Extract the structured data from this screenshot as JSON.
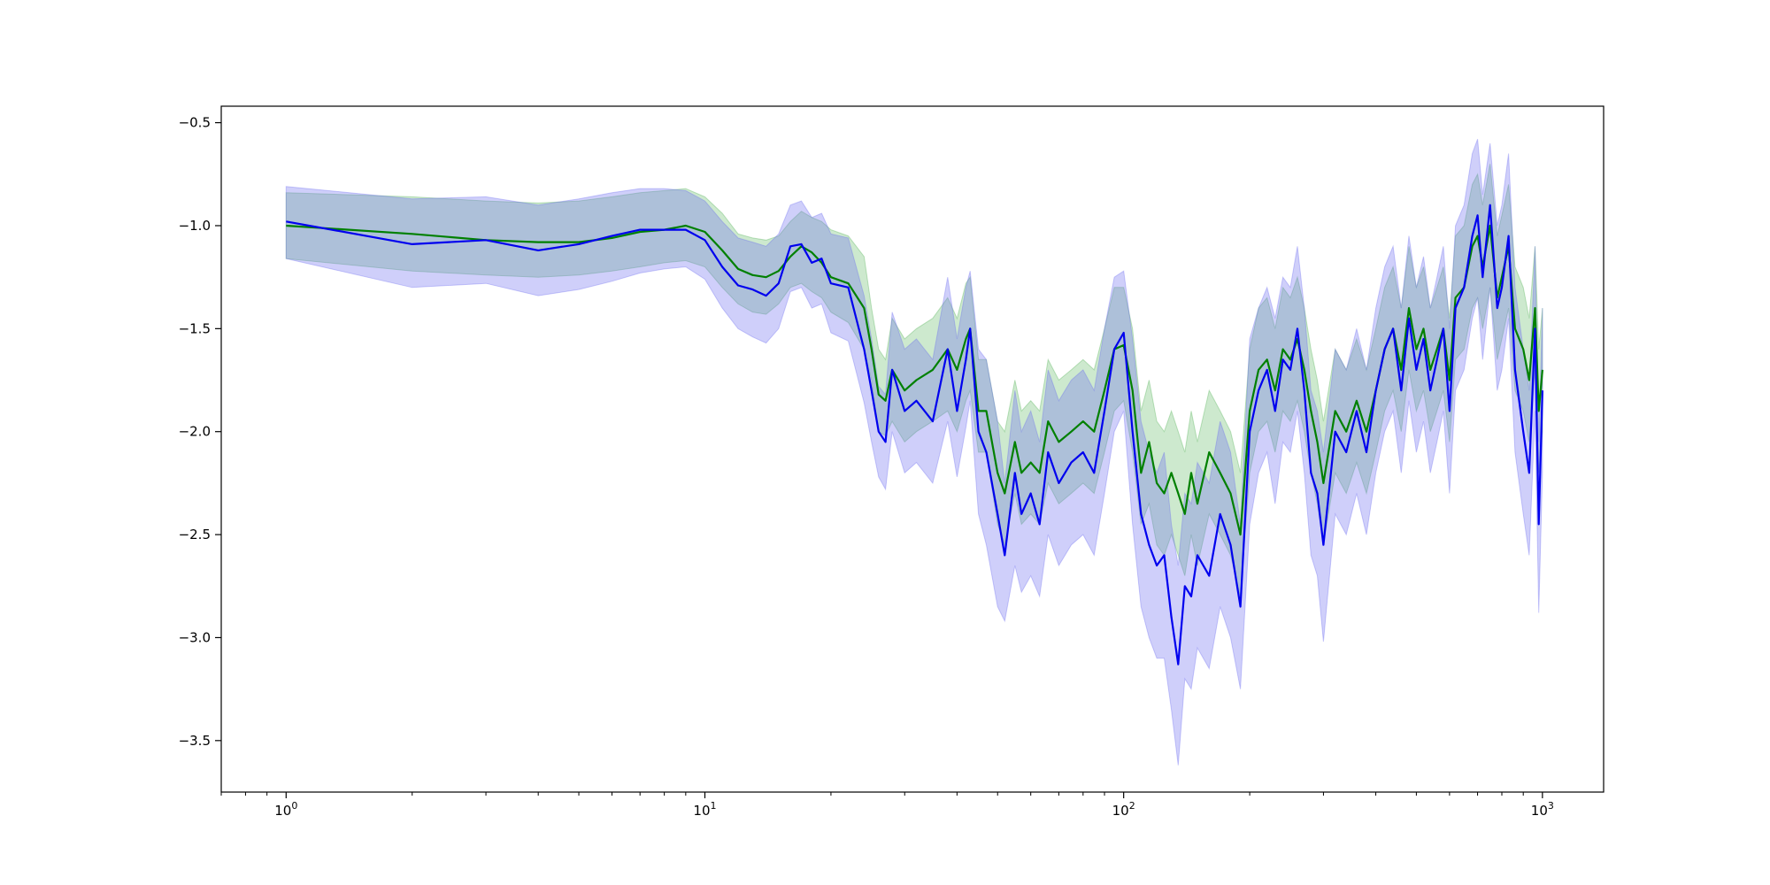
{
  "chart_data": {
    "type": "line",
    "title": "",
    "xlabel": "",
    "ylabel": "",
    "xscale": "log",
    "xlim": [
      0.7,
      1400
    ],
    "ylim": [
      -3.75,
      -0.42
    ],
    "grid": false,
    "legend": "none",
    "xticks": [
      {
        "value": 1,
        "base": "10",
        "exp": "0"
      },
      {
        "value": 10,
        "base": "10",
        "exp": "1"
      },
      {
        "value": 100,
        "base": "10",
        "exp": "2"
      },
      {
        "value": 1000,
        "base": "10",
        "exp": "3"
      }
    ],
    "yticks": [
      {
        "value": -0.5,
        "label": "−0.5"
      },
      {
        "value": -1.0,
        "label": "−1.0"
      },
      {
        "value": -1.5,
        "label": "−1.5"
      },
      {
        "value": -2.0,
        "label": "−2.0"
      },
      {
        "value": -2.5,
        "label": "−2.5"
      },
      {
        "value": -3.0,
        "label": "−3.0"
      },
      {
        "value": -3.5,
        "label": "−3.5"
      }
    ],
    "series": [
      {
        "color": "#008000",
        "band_color": "#4caf50",
        "band_opacity": 0.28,
        "x": [
          1,
          2,
          3,
          4,
          5,
          6,
          7,
          8,
          9,
          10,
          11,
          12,
          13,
          14,
          15,
          16,
          17,
          18,
          19,
          20,
          22,
          24,
          25,
          26,
          27,
          28,
          30,
          32,
          35,
          38,
          40,
          42,
          43,
          45,
          47,
          50,
          52,
          55,
          57,
          60,
          63,
          66,
          70,
          75,
          80,
          85,
          90,
          95,
          100,
          105,
          110,
          115,
          120,
          125,
          130,
          135,
          140,
          145,
          150,
          160,
          170,
          180,
          190,
          200,
          210,
          220,
          230,
          240,
          250,
          260,
          270,
          280,
          290,
          300,
          320,
          340,
          360,
          380,
          400,
          420,
          440,
          460,
          480,
          500,
          520,
          540,
          560,
          580,
          600,
          620,
          650,
          680,
          700,
          720,
          750,
          780,
          800,
          830,
          860,
          900,
          930,
          960,
          980,
          1000
        ],
        "y": [
          -1.0,
          -1.04,
          -1.07,
          -1.08,
          -1.08,
          -1.06,
          -1.03,
          -1.02,
          -1.0,
          -1.03,
          -1.12,
          -1.21,
          -1.24,
          -1.25,
          -1.22,
          -1.15,
          -1.1,
          -1.13,
          -1.18,
          -1.25,
          -1.28,
          -1.4,
          -1.6,
          -1.82,
          -1.85,
          -1.7,
          -1.8,
          -1.75,
          -1.7,
          -1.6,
          -1.7,
          -1.55,
          -1.5,
          -1.9,
          -1.9,
          -2.2,
          -2.3,
          -2.05,
          -2.2,
          -2.15,
          -2.2,
          -1.95,
          -2.05,
          -2.0,
          -1.95,
          -2.0,
          -1.8,
          -1.6,
          -1.58,
          -1.8,
          -2.2,
          -2.05,
          -2.25,
          -2.3,
          -2.2,
          -2.3,
          -2.4,
          -2.2,
          -2.35,
          -2.1,
          -2.2,
          -2.3,
          -2.5,
          -1.9,
          -1.7,
          -1.65,
          -1.8,
          -1.6,
          -1.65,
          -1.55,
          -1.7,
          -1.9,
          -2.05,
          -2.25,
          -1.9,
          -2.0,
          -1.85,
          -2.0,
          -1.8,
          -1.6,
          -1.5,
          -1.7,
          -1.4,
          -1.6,
          -1.5,
          -1.7,
          -1.6,
          -1.5,
          -1.75,
          -1.35,
          -1.3,
          -1.1,
          -1.05,
          -1.2,
          -1.0,
          -1.35,
          -1.25,
          -1.1,
          -1.5,
          -1.6,
          -1.75,
          -1.4,
          -1.9,
          -1.7
        ],
        "lower": [
          -1.16,
          -1.22,
          -1.24,
          -1.25,
          -1.24,
          -1.22,
          -1.2,
          -1.18,
          -1.17,
          -1.2,
          -1.3,
          -1.38,
          -1.42,
          -1.43,
          -1.38,
          -1.3,
          -1.28,
          -1.32,
          -1.35,
          -1.42,
          -1.47,
          -1.6,
          -1.75,
          -2.0,
          -2.02,
          -1.95,
          -2.05,
          -2.0,
          -1.95,
          -1.9,
          -2.0,
          -1.85,
          -1.8,
          -2.1,
          -2.1,
          -2.45,
          -2.55,
          -2.3,
          -2.45,
          -2.4,
          -2.45,
          -2.25,
          -2.35,
          -2.3,
          -2.25,
          -2.3,
          -2.1,
          -1.9,
          -1.85,
          -2.1,
          -2.45,
          -2.35,
          -2.55,
          -2.6,
          -2.5,
          -2.6,
          -2.7,
          -2.5,
          -2.65,
          -2.4,
          -2.5,
          -2.6,
          -2.8,
          -2.2,
          -2.0,
          -1.95,
          -2.1,
          -1.9,
          -1.95,
          -1.85,
          -2.0,
          -2.2,
          -2.35,
          -2.55,
          -2.2,
          -2.3,
          -2.15,
          -2.3,
          -2.1,
          -1.9,
          -1.8,
          -2.0,
          -1.7,
          -1.9,
          -1.8,
          -2.0,
          -1.9,
          -1.8,
          -2.05,
          -1.65,
          -1.6,
          -1.4,
          -1.35,
          -1.5,
          -1.3,
          -1.65,
          -1.55,
          -1.4,
          -1.8,
          -1.9,
          -2.05,
          -1.7,
          -2.2,
          -2.0
        ],
        "upper": [
          -0.84,
          -0.86,
          -0.88,
          -0.89,
          -0.88,
          -0.86,
          -0.84,
          -0.83,
          -0.82,
          -0.86,
          -0.94,
          -1.04,
          -1.06,
          -1.07,
          -1.05,
          -0.98,
          -0.93,
          -0.96,
          -0.98,
          -1.02,
          -1.05,
          -1.15,
          -1.4,
          -1.6,
          -1.65,
          -1.45,
          -1.55,
          -1.5,
          -1.45,
          -1.35,
          -1.45,
          -1.28,
          -1.25,
          -1.65,
          -1.65,
          -1.95,
          -2.0,
          -1.75,
          -1.9,
          -1.85,
          -1.9,
          -1.65,
          -1.75,
          -1.7,
          -1.65,
          -1.7,
          -1.5,
          -1.3,
          -1.3,
          -1.5,
          -1.9,
          -1.75,
          -1.95,
          -2.0,
          -1.9,
          -2.0,
          -2.1,
          -1.9,
          -2.05,
          -1.8,
          -1.9,
          -2.0,
          -2.2,
          -1.6,
          -1.4,
          -1.35,
          -1.5,
          -1.3,
          -1.35,
          -1.25,
          -1.4,
          -1.6,
          -1.75,
          -1.95,
          -1.6,
          -1.7,
          -1.55,
          -1.7,
          -1.5,
          -1.3,
          -1.2,
          -1.4,
          -1.1,
          -1.3,
          -1.2,
          -1.4,
          -1.3,
          -1.2,
          -1.45,
          -1.05,
          -1.0,
          -0.8,
          -0.75,
          -0.9,
          -0.7,
          -1.05,
          -0.95,
          -0.8,
          -1.2,
          -1.3,
          -1.45,
          -1.1,
          -1.6,
          -1.4
        ]
      },
      {
        "color": "#0000ee",
        "band_color": "#6a6af0",
        "band_opacity": 0.32,
        "x": [
          1,
          2,
          3,
          4,
          5,
          6,
          7,
          8,
          9,
          10,
          11,
          12,
          13,
          14,
          15,
          16,
          17,
          18,
          19,
          20,
          22,
          24,
          25,
          26,
          27,
          28,
          30,
          32,
          35,
          38,
          40,
          42,
          43,
          45,
          47,
          50,
          52,
          55,
          57,
          60,
          63,
          66,
          70,
          75,
          80,
          85,
          90,
          95,
          100,
          105,
          110,
          115,
          120,
          125,
          130,
          135,
          140,
          145,
          150,
          160,
          170,
          180,
          190,
          200,
          210,
          220,
          230,
          240,
          250,
          260,
          270,
          280,
          290,
          300,
          320,
          340,
          360,
          380,
          400,
          420,
          440,
          460,
          480,
          500,
          520,
          540,
          560,
          580,
          600,
          620,
          650,
          680,
          700,
          720,
          750,
          780,
          800,
          830,
          860,
          900,
          930,
          960,
          980,
          1000
        ],
        "y": [
          -0.98,
          -1.09,
          -1.07,
          -1.12,
          -1.09,
          -1.05,
          -1.02,
          -1.02,
          -1.02,
          -1.07,
          -1.2,
          -1.29,
          -1.31,
          -1.34,
          -1.28,
          -1.1,
          -1.09,
          -1.18,
          -1.16,
          -1.28,
          -1.3,
          -1.6,
          -1.8,
          -2.0,
          -2.05,
          -1.7,
          -1.9,
          -1.85,
          -1.95,
          -1.6,
          -1.9,
          -1.65,
          -1.5,
          -2.0,
          -2.1,
          -2.4,
          -2.6,
          -2.2,
          -2.4,
          -2.3,
          -2.45,
          -2.1,
          -2.25,
          -2.15,
          -2.1,
          -2.2,
          -1.9,
          -1.6,
          -1.52,
          -2.0,
          -2.4,
          -2.55,
          -2.65,
          -2.6,
          -2.9,
          -3.13,
          -2.75,
          -2.8,
          -2.6,
          -2.7,
          -2.4,
          -2.55,
          -2.85,
          -2.0,
          -1.8,
          -1.7,
          -1.9,
          -1.65,
          -1.7,
          -1.5,
          -1.8,
          -2.2,
          -2.3,
          -2.55,
          -2.0,
          -2.1,
          -1.9,
          -2.1,
          -1.8,
          -1.6,
          -1.5,
          -1.8,
          -1.45,
          -1.7,
          -1.55,
          -1.8,
          -1.65,
          -1.5,
          -1.9,
          -1.4,
          -1.3,
          -1.05,
          -0.95,
          -1.25,
          -0.9,
          -1.4,
          -1.3,
          -1.05,
          -1.7,
          -2.0,
          -2.2,
          -1.5,
          -2.45,
          -1.8
        ],
        "lower": [
          -1.16,
          -1.3,
          -1.28,
          -1.34,
          -1.31,
          -1.27,
          -1.23,
          -1.21,
          -1.2,
          -1.26,
          -1.4,
          -1.5,
          -1.54,
          -1.57,
          -1.5,
          -1.32,
          -1.3,
          -1.4,
          -1.38,
          -1.52,
          -1.56,
          -1.86,
          -2.05,
          -2.22,
          -2.28,
          -2.0,
          -2.2,
          -2.15,
          -2.25,
          -1.95,
          -2.22,
          -1.98,
          -1.85,
          -2.4,
          -2.55,
          -2.85,
          -2.92,
          -2.65,
          -2.78,
          -2.7,
          -2.8,
          -2.5,
          -2.65,
          -2.55,
          -2.5,
          -2.6,
          -2.3,
          -2.0,
          -1.9,
          -2.45,
          -2.85,
          -3.0,
          -3.1,
          -3.1,
          -3.35,
          -3.62,
          -3.2,
          -3.25,
          -3.05,
          -3.15,
          -2.85,
          -3.0,
          -3.25,
          -2.45,
          -2.2,
          -2.1,
          -2.35,
          -2.05,
          -2.1,
          -1.9,
          -2.2,
          -2.6,
          -2.7,
          -3.02,
          -2.4,
          -2.5,
          -2.3,
          -2.5,
          -2.2,
          -2.0,
          -1.9,
          -2.2,
          -1.85,
          -2.1,
          -1.95,
          -2.2,
          -2.05,
          -1.9,
          -2.3,
          -1.8,
          -1.7,
          -1.45,
          -1.35,
          -1.65,
          -1.3,
          -1.8,
          -1.7,
          -1.45,
          -2.1,
          -2.4,
          -2.6,
          -1.9,
          -2.88,
          -2.2
        ],
        "upper": [
          -0.81,
          -0.87,
          -0.86,
          -0.9,
          -0.87,
          -0.84,
          -0.82,
          -0.82,
          -0.83,
          -0.88,
          -0.98,
          -1.06,
          -1.08,
          -1.1,
          -1.04,
          -0.9,
          -0.88,
          -0.96,
          -0.94,
          -1.04,
          -1.06,
          -1.34,
          -1.55,
          -1.78,
          -1.82,
          -1.42,
          -1.6,
          -1.55,
          -1.65,
          -1.25,
          -1.55,
          -1.3,
          -1.22,
          -1.6,
          -1.65,
          -1.95,
          -2.25,
          -1.8,
          -2.0,
          -1.9,
          -2.05,
          -1.7,
          -1.85,
          -1.75,
          -1.7,
          -1.8,
          -1.5,
          -1.25,
          -1.22,
          -1.55,
          -1.95,
          -2.1,
          -2.2,
          -2.1,
          -2.45,
          -2.65,
          -2.3,
          -2.35,
          -2.15,
          -2.25,
          -1.95,
          -2.1,
          -2.45,
          -1.55,
          -1.4,
          -1.3,
          -1.45,
          -1.25,
          -1.3,
          -1.1,
          -1.4,
          -1.8,
          -1.9,
          -2.1,
          -1.6,
          -1.7,
          -1.5,
          -1.7,
          -1.4,
          -1.2,
          -1.1,
          -1.4,
          -1.05,
          -1.3,
          -1.15,
          -1.4,
          -1.25,
          -1.1,
          -1.5,
          -1.0,
          -0.9,
          -0.65,
          -0.58,
          -0.85,
          -0.6,
          -1.0,
          -0.9,
          -0.65,
          -1.3,
          -1.6,
          -1.8,
          -1.1,
          -2.05,
          -1.4
        ]
      }
    ]
  }
}
